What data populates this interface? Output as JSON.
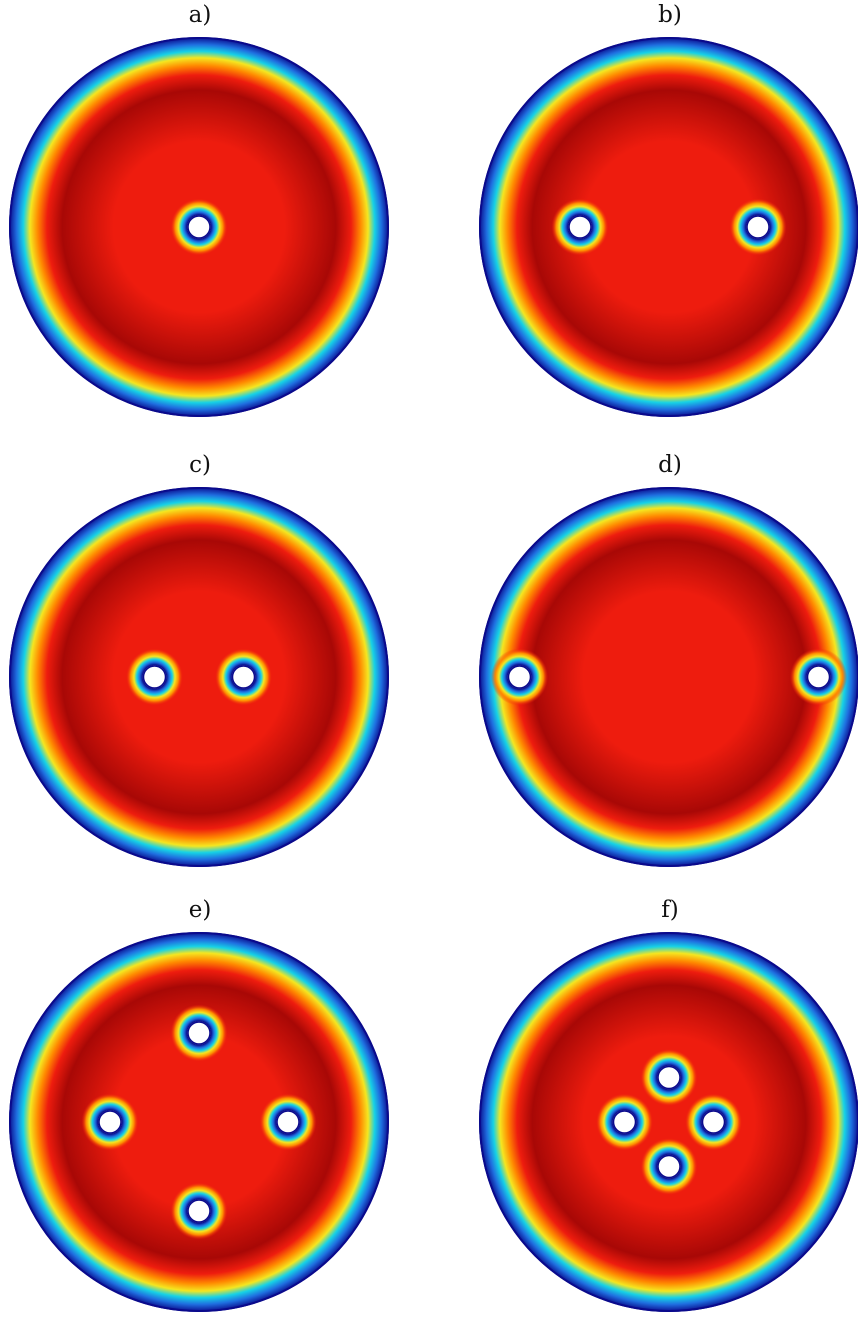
{
  "panels": [
    {
      "id": "a",
      "label": "a)",
      "holes": [
        [
          0,
          0
        ]
      ]
    },
    {
      "id": "b",
      "label": "b)",
      "holes": [
        [
          -0.5,
          0
        ],
        [
          0.5,
          0
        ]
      ]
    },
    {
      "id": "c",
      "label": "c)",
      "holes": [
        [
          -0.25,
          0
        ],
        [
          0.25,
          0
        ]
      ]
    },
    {
      "id": "d",
      "label": "d)",
      "holes": [
        [
          -0.84,
          0
        ],
        [
          0.84,
          0
        ]
      ]
    },
    {
      "id": "e",
      "label": "e)",
      "holes": [
        [
          0,
          -0.5
        ],
        [
          -0.5,
          0
        ],
        [
          0.5,
          0
        ],
        [
          0,
          0.5
        ]
      ]
    },
    {
      "id": "f",
      "label": "f)",
      "holes": [
        [
          0,
          -0.25
        ],
        [
          -0.25,
          0
        ],
        [
          0.25,
          0
        ],
        [
          0,
          0.25
        ]
      ]
    }
  ],
  "colors": {
    "edge": "#0a0a8c",
    "blue": "#1f6fe0",
    "cyan": "#16d2e6",
    "yellow": "#f5e620",
    "orange": "#ff8a00",
    "red": "#ee1c0e",
    "dark_red": "#a80806"
  }
}
